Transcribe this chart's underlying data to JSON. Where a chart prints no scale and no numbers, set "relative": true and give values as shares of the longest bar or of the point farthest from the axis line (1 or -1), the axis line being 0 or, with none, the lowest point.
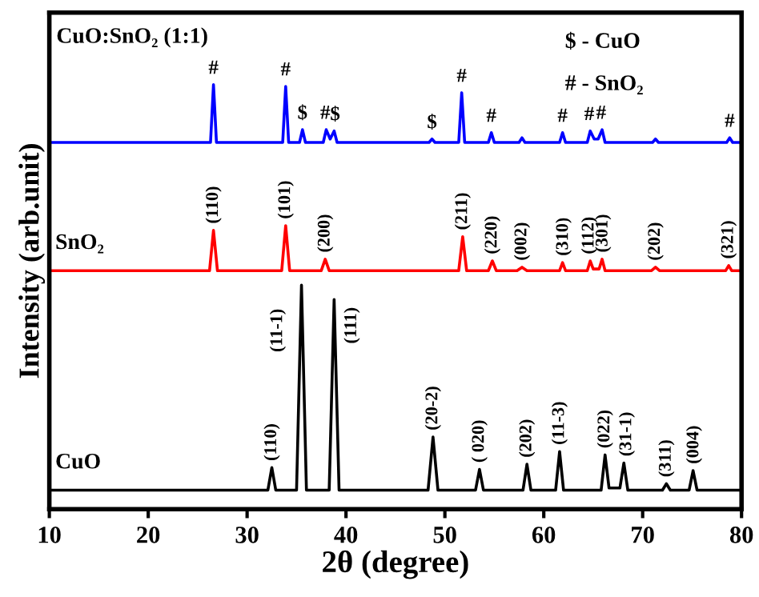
{
  "chart_data": {
    "type": "line",
    "relative": true,
    "xlabel": "2θ (degree)",
    "ylabel": "Intensity (arb.unit)",
    "xlim": [
      10,
      80
    ],
    "xticks": [
      10,
      20,
      30,
      40,
      50,
      60,
      70,
      80
    ],
    "grid": false,
    "legend": false,
    "marker": "none",
    "line_style": "solid",
    "series": [
      {
        "name": "CuO",
        "color": "#000000",
        "x": [
          10,
          32.1,
          32.5,
          32.9,
          35.0,
          35.5,
          36.0,
          38.3,
          38.8,
          39.3,
          48.3,
          48.8,
          49.3,
          53.1,
          53.5,
          53.9,
          57.9,
          58.3,
          58.7,
          61.2,
          61.6,
          62.0,
          65.8,
          66.2,
          66.6,
          67.7,
          68.1,
          68.5,
          72.0,
          72.4,
          72.8,
          74.7,
          75.1,
          75.5,
          79.8
        ],
        "values": [
          0.045,
          0.045,
          0.098,
          0.045,
          0.045,
          0.528,
          0.045,
          0.045,
          0.494,
          0.045,
          0.045,
          0.17,
          0.045,
          0.045,
          0.094,
          0.045,
          0.045,
          0.106,
          0.045,
          0.045,
          0.136,
          0.045,
          0.045,
          0.128,
          0.05,
          0.05,
          0.109,
          0.045,
          0.045,
          0.06,
          0.045,
          0.045,
          0.091,
          0.045,
          0.045
        ]
      },
      {
        "name": "SnO₂",
        "color": "#ff0000",
        "x": [
          10,
          26.2,
          26.6,
          27.0,
          33.5,
          33.9,
          34.3,
          37.5,
          37.9,
          38.3,
          51.4,
          51.8,
          52.2,
          54.4,
          54.8,
          55.2,
          57.3,
          57.8,
          58.3,
          61.6,
          61.9,
          62.2,
          64.4,
          64.7,
          65.0,
          65.6,
          65.9,
          66.2,
          70.9,
          71.3,
          71.7,
          78.4,
          78.7,
          79.0,
          79.8
        ],
        "values": [
          0.562,
          0.562,
          0.657,
          0.562,
          0.562,
          0.668,
          0.562,
          0.562,
          0.589,
          0.562,
          0.562,
          0.642,
          0.562,
          0.562,
          0.585,
          0.562,
          0.562,
          0.57,
          0.562,
          0.562,
          0.581,
          0.562,
          0.562,
          0.585,
          0.566,
          0.566,
          0.589,
          0.562,
          0.562,
          0.57,
          0.562,
          0.562,
          0.574,
          0.562,
          0.562
        ]
      },
      {
        "color": "#0000ff",
        "x": [
          10,
          26.3,
          26.6,
          26.9,
          33.6,
          33.9,
          34.2,
          35.3,
          35.6,
          35.9,
          37.7,
          38.0,
          38.4,
          38.8,
          39.1,
          48.4,
          48.7,
          49.0,
          51.4,
          51.7,
          52.0,
          54.4,
          54.7,
          55.0,
          57.5,
          57.8,
          58.1,
          61.6,
          61.9,
          62.2,
          64.4,
          64.7,
          65.1,
          65.5,
          65.9,
          66.2,
          71.0,
          71.3,
          71.6,
          78.5,
          78.8,
          79.1,
          79.8
        ],
        "values": [
          0.864,
          0.864,
          1.0,
          0.864,
          0.864,
          0.996,
          0.864,
          0.864,
          0.894,
          0.864,
          0.864,
          0.894,
          0.872,
          0.891,
          0.864,
          0.864,
          0.872,
          0.864,
          0.864,
          0.981,
          0.864,
          0.864,
          0.887,
          0.864,
          0.864,
          0.875,
          0.864,
          0.864,
          0.887,
          0.864,
          0.864,
          0.891,
          0.872,
          0.872,
          0.894,
          0.864,
          0.864,
          0.872,
          0.864,
          0.864,
          0.875,
          0.864,
          0.864
        ]
      }
    ],
    "annotations": [
      "CuO:SnO₂ (1:1)",
      "$ - CuO",
      "# - SnO₂",
      "(11-1)",
      "(111)",
      {
        "text": "#",
        "x": 26.6,
        "y": 1.0
      },
      {
        "text": "#",
        "x": 33.9,
        "y": 0.996
      },
      {
        "text": "$",
        "x": 35.6,
        "y": 0.894
      },
      {
        "text": "#",
        "x": 37.9,
        "y": 0.894
      },
      {
        "text": "$",
        "x": 38.9,
        "y": 0.891
      },
      {
        "text": "$",
        "x": 48.7,
        "y": 0.872
      },
      {
        "text": "#",
        "x": 51.7,
        "y": 0.981
      },
      {
        "text": "#",
        "x": 54.7,
        "y": 0.887
      },
      {
        "text": "#",
        "x": 61.9,
        "y": 0.887
      },
      {
        "text": "#",
        "x": 64.6,
        "y": 0.891
      },
      {
        "text": "#",
        "x": 65.8,
        "y": 0.894
      },
      {
        "text": "#",
        "x": 78.8,
        "y": 0.875
      },
      {
        "text": "(110)",
        "x": 26.6,
        "y": 0.657
      },
      {
        "text": "(101)",
        "x": 33.9,
        "y": 0.668
      },
      {
        "text": "(200)",
        "x": 37.9,
        "y": 0.589
      },
      {
        "text": "(211)",
        "x": 51.8,
        "y": 0.642
      },
      {
        "text": "(220)",
        "x": 54.8,
        "y": 0.585
      },
      {
        "text": "(002)",
        "x": 57.8,
        "y": 0.57
      },
      {
        "text": "(310)",
        "x": 62.0,
        "y": 0.581
      },
      {
        "text": "(112)",
        "x": 64.6,
        "y": 0.585
      },
      {
        "text": "(301)",
        "x": 66.0,
        "y": 0.589
      },
      {
        "text": "(202)",
        "x": 71.3,
        "y": 0.57
      },
      {
        "text": "(321)",
        "x": 78.7,
        "y": 0.574
      },
      {
        "text": "(110)",
        "x": 32.5,
        "y": 0.098
      },
      {
        "text": "(20-2)",
        "x": 48.8,
        "y": 0.17
      },
      {
        "text": "( 020)",
        "x": 53.5,
        "y": 0.094
      },
      {
        "text": "(202)",
        "x": 58.3,
        "y": 0.106
      },
      {
        "text": "(11-3)",
        "x": 61.6,
        "y": 0.136
      },
      {
        "text": "(022)",
        "x": 66.2,
        "y": 0.128
      },
      {
        "text": "(31-1)",
        "x": 68.4,
        "y": 0.109
      },
      {
        "text": "(311)",
        "x": 72.4,
        "y": 0.06
      },
      {
        "text": "(004)",
        "x": 75.2,
        "y": 0.091
      }
    ]
  }
}
